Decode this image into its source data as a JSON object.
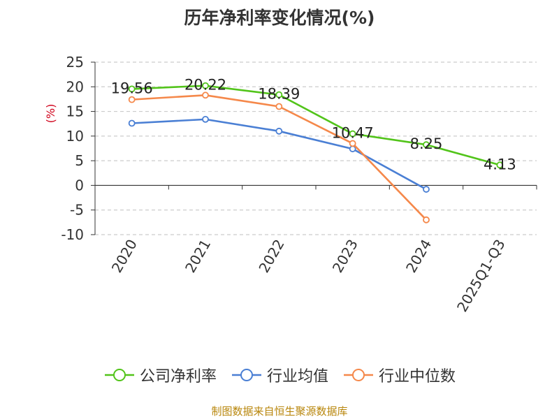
{
  "chart_data": {
    "type": "line",
    "title": "历年净利率变化情况(%)",
    "ylabel": "(%)",
    "categories": [
      "2020",
      "2021",
      "2022",
      "2023",
      "2024",
      "2025Q1-Q3"
    ],
    "ylim": [
      -10,
      25
    ],
    "yticks": [
      25,
      20,
      15,
      10,
      5,
      0,
      -5,
      -10
    ],
    "grid": true,
    "legend_position": "bottom",
    "series": [
      {
        "name": "公司净利率",
        "color": "#52c41a",
        "values": [
          19.56,
          20.22,
          18.39,
          10.47,
          8.25,
          4.13
        ],
        "labels": [
          "19.56",
          "20.22",
          "18.39",
          "10.47",
          "8.25",
          "4.13"
        ]
      },
      {
        "name": "行业均值",
        "color": "#4a7fd4",
        "values": [
          12.6,
          13.4,
          11.0,
          7.4,
          -0.8,
          null
        ]
      },
      {
        "name": "行业中位数",
        "color": "#f5884a",
        "values": [
          17.4,
          18.3,
          16.0,
          8.5,
          -7.0,
          null
        ]
      }
    ]
  },
  "source": "制图数据来自恒生聚源数据库"
}
